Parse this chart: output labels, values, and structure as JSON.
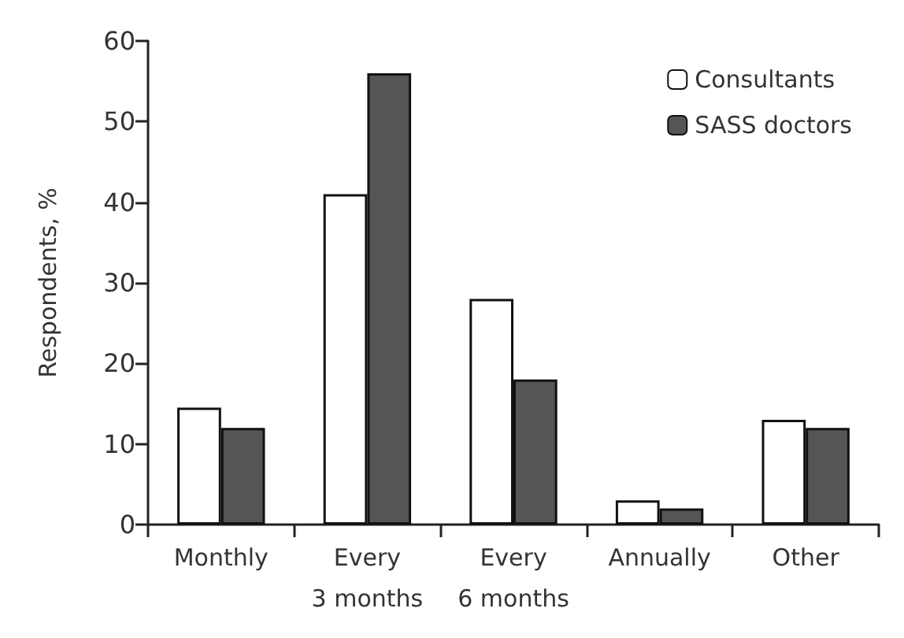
{
  "chart_data": {
    "type": "bar",
    "ylabel": "Respondents, %",
    "categories": [
      "Monthly",
      "Every\n3 months",
      "Every\n6 months",
      "Annually",
      "Other"
    ],
    "series": [
      {
        "name": "Consultants",
        "color": "#ffffff",
        "values": [
          14.5,
          41,
          28,
          3,
          13
        ]
      },
      {
        "name": "SASS doctors",
        "color": "#555555",
        "values": [
          12,
          56,
          18,
          2,
          12
        ]
      }
    ],
    "ylim": [
      0,
      60
    ],
    "yticks": [
      0,
      10,
      20,
      30,
      40,
      50,
      60
    ],
    "grid": false,
    "legend": "top right"
  }
}
